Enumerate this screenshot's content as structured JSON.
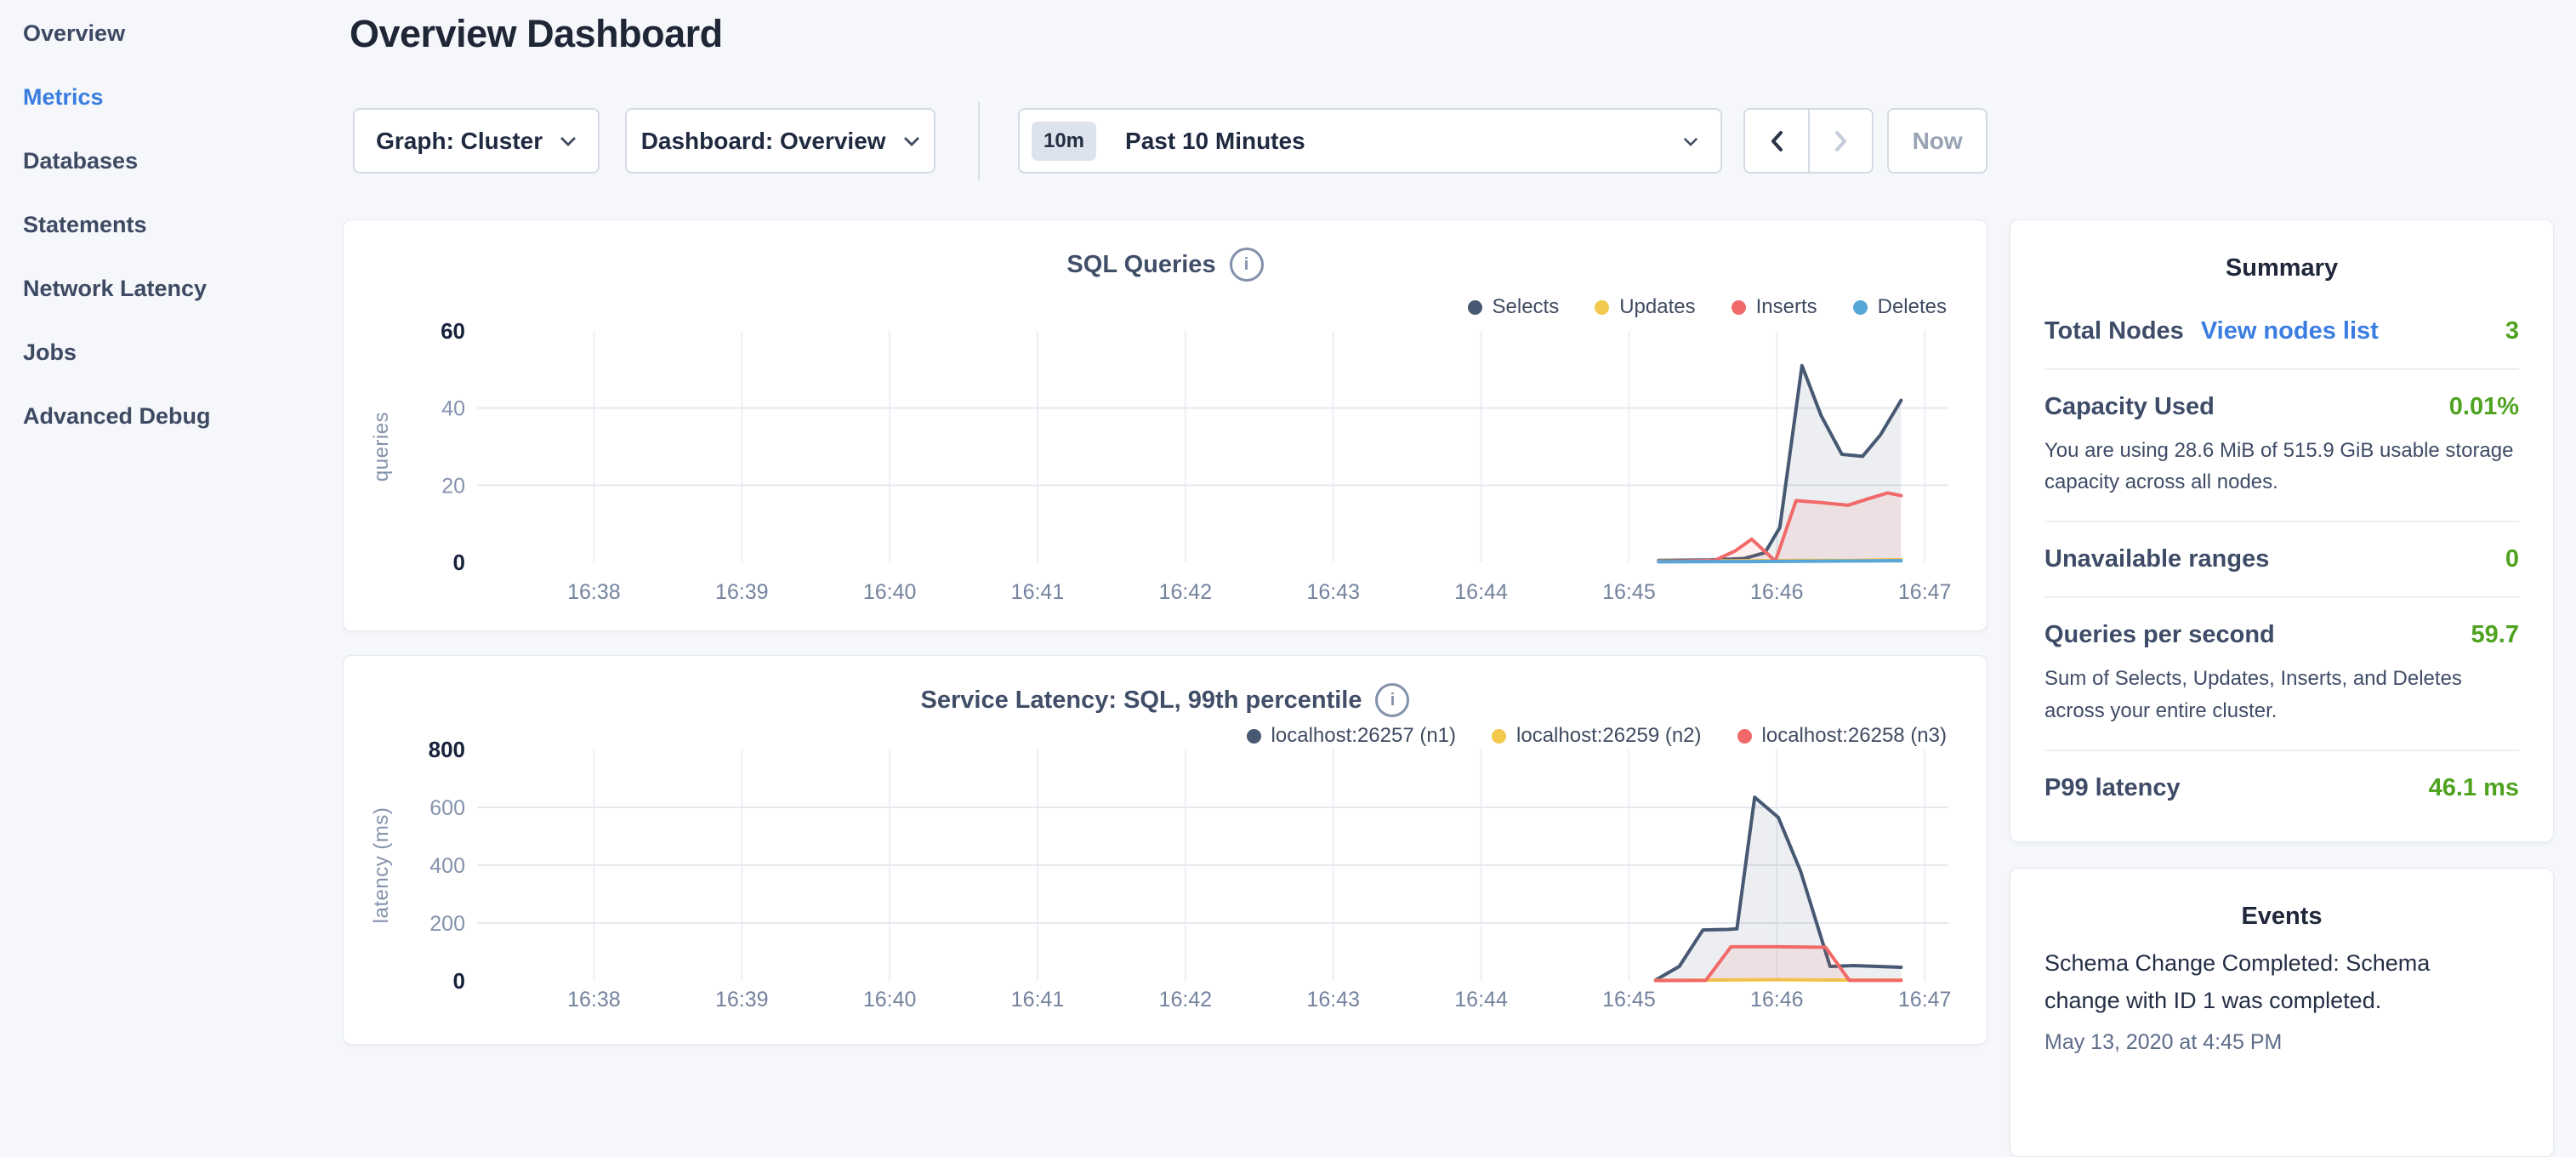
{
  "header": {
    "title": "Overview Dashboard"
  },
  "sidebar": {
    "items": [
      {
        "label": "Overview",
        "active": false
      },
      {
        "label": "Metrics",
        "active": true
      },
      {
        "label": "Databases",
        "active": false
      },
      {
        "label": "Statements",
        "active": false
      },
      {
        "label": "Network Latency",
        "active": false
      },
      {
        "label": "Jobs",
        "active": false
      },
      {
        "label": "Advanced Debug",
        "active": false
      }
    ]
  },
  "toolbar": {
    "graph_dropdown": "Graph: Cluster",
    "dashboard_dropdown": "Dashboard: Overview",
    "time_badge": "10m",
    "time_label": "Past 10 Minutes",
    "now_label": "Now"
  },
  "colors": {
    "accent_blue": "#3a7de1",
    "value_green": "#4fa321",
    "series_navy": "#475872",
    "series_yellow": "#f2c94c",
    "series_red": "#f16969",
    "series_blue": "#56a6d8"
  },
  "chart_data": [
    {
      "type": "line",
      "title": "SQL Queries",
      "ylabel": "queries",
      "xlabel": "",
      "ylim": [
        0,
        60
      ],
      "yticks": [
        0,
        20,
        40,
        60
      ],
      "grid": true,
      "legend_position": "top-right",
      "x_unit": "minutes past 16:00",
      "x_ticks": [
        {
          "t": 38,
          "label": "16:38"
        },
        {
          "t": 39,
          "label": "16:39"
        },
        {
          "t": 40,
          "label": "16:40"
        },
        {
          "t": 41,
          "label": "16:41"
        },
        {
          "t": 42,
          "label": "16:42"
        },
        {
          "t": 43,
          "label": "16:43"
        },
        {
          "t": 44,
          "label": "16:44"
        },
        {
          "t": 45,
          "label": "16:45"
        },
        {
          "t": 46,
          "label": "16:46"
        },
        {
          "t": 47,
          "label": "16:47"
        }
      ],
      "series": [
        {
          "name": "Selects",
          "color": "#475872",
          "x": [
            45.2,
            45.55,
            45.78,
            45.92,
            46.02,
            46.17,
            46.3,
            46.44,
            46.58,
            46.7,
            46.84
          ],
          "values": [
            0.5,
            0.6,
            1,
            2.5,
            9,
            51,
            38,
            28,
            27.5,
            33,
            42
          ]
        },
        {
          "name": "Updates",
          "color": "#f2c94c",
          "x": [
            45.2,
            45.8,
            46.1,
            46.5,
            46.84
          ],
          "values": [
            0.3,
            0.4,
            0.5,
            0.5,
            0.7
          ]
        },
        {
          "name": "Inserts",
          "color": "#f16969",
          "x": [
            45.2,
            45.58,
            45.72,
            45.83,
            45.99,
            46.13,
            46.3,
            46.48,
            46.62,
            46.75,
            46.84
          ],
          "values": [
            0.2,
            0.5,
            3,
            6,
            0.3,
            16,
            15.5,
            14.8,
            16.5,
            18,
            17.3
          ]
        },
        {
          "name": "Deletes",
          "color": "#56a6d8",
          "x": [
            45.2,
            45.8,
            46.3,
            46.84
          ],
          "values": [
            0.15,
            0.2,
            0.3,
            0.4
          ]
        }
      ]
    },
    {
      "type": "line",
      "title": "Service Latency: SQL, 99th percentile",
      "ylabel": "latency (ms)",
      "xlabel": "",
      "ylim": [
        0,
        800
      ],
      "yticks": [
        0,
        200,
        400,
        600,
        800
      ],
      "grid": true,
      "legend_position": "top-right",
      "x_unit": "minutes past 16:00",
      "x_ticks": [
        {
          "t": 38,
          "label": "16:38"
        },
        {
          "t": 39,
          "label": "16:39"
        },
        {
          "t": 40,
          "label": "16:40"
        },
        {
          "t": 41,
          "label": "16:41"
        },
        {
          "t": 42,
          "label": "16:42"
        },
        {
          "t": 43,
          "label": "16:43"
        },
        {
          "t": 44,
          "label": "16:44"
        },
        {
          "t": 45,
          "label": "16:45"
        },
        {
          "t": 46,
          "label": "16:46"
        },
        {
          "t": 47,
          "label": "16:47"
        }
      ],
      "series": [
        {
          "name": "localhost:26257 (n1)",
          "color": "#475872",
          "x": [
            45.18,
            45.34,
            45.5,
            45.67,
            45.73,
            45.85,
            46.01,
            46.16,
            46.36,
            46.52,
            46.84
          ],
          "values": [
            3,
            50,
            176,
            178,
            180,
            635,
            565,
            380,
            50,
            53,
            47
          ]
        },
        {
          "name": "localhost:26259 (n2)",
          "color": "#f2c94c",
          "x": [
            45.18,
            45.6,
            46.0,
            46.4,
            46.84
          ],
          "values": [
            2,
            3,
            4,
            3,
            3
          ]
        },
        {
          "name": "localhost:26258 (n3)",
          "color": "#f16969",
          "x": [
            45.18,
            45.52,
            45.69,
            46.0,
            46.33,
            46.49,
            46.84
          ],
          "values": [
            1,
            2,
            118,
            118,
            116,
            2,
            2
          ]
        }
      ]
    }
  ],
  "summary": {
    "title": "Summary",
    "rows": [
      {
        "label": "Total Nodes",
        "link": "View nodes list",
        "value": "3"
      },
      {
        "label": "Capacity Used",
        "value": "0.01%",
        "desc": "You are using 28.6 MiB of 515.9 GiB usable storage capacity across all nodes."
      },
      {
        "label": "Unavailable ranges",
        "value": "0"
      },
      {
        "label": "Queries per second",
        "value": "59.7",
        "desc": "Sum of Selects, Updates, Inserts, and Deletes across your entire cluster."
      },
      {
        "label": "P99 latency",
        "value": "46.1 ms"
      }
    ]
  },
  "events": {
    "title": "Events",
    "items": [
      {
        "text": "Schema Change Completed: Schema change with ID 1 was completed.",
        "timestamp": "May 13, 2020 at 4:45 PM"
      }
    ]
  }
}
